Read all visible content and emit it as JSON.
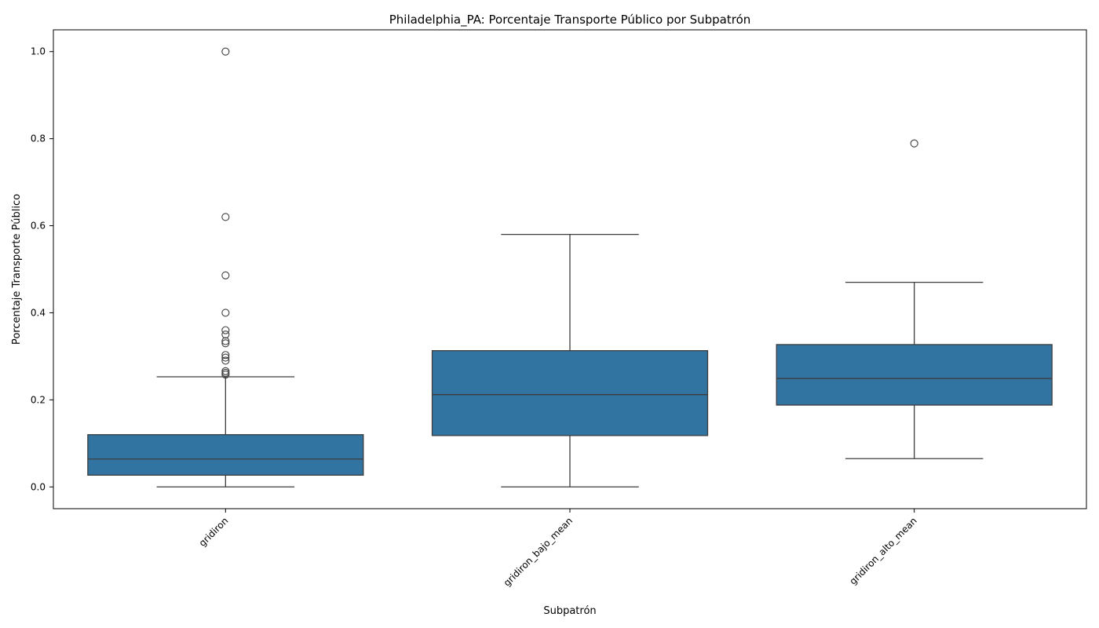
{
  "chart_data": {
    "type": "box",
    "title": "Philadelphia_PA: Porcentaje Transporte Público por Subpatrón",
    "xlabel": "Subpatrón",
    "ylabel": "Porcentaje Transporte Público",
    "ylim": [
      -0.05,
      1.05
    ],
    "yticks": [
      0.0,
      0.2,
      0.4,
      0.6,
      0.8,
      1.0
    ],
    "ytick_labels": [
      "0.0",
      "0.2",
      "0.4",
      "0.6",
      "0.8",
      "1.0"
    ],
    "grid": false,
    "box_color": "#3274a1",
    "line_color": "#3d3d3d",
    "categories": [
      "gridiron",
      "gridiron_bajo_mean",
      "gridiron_alto_mean"
    ],
    "boxes": [
      {
        "category": "gridiron",
        "whisker_low": 0.0,
        "q1": 0.027,
        "median": 0.064,
        "q3": 0.12,
        "whisker_high": 0.253,
        "outliers": [
          0.258,
          0.262,
          0.266,
          0.29,
          0.297,
          0.303,
          0.33,
          0.335,
          0.35,
          0.36,
          0.4,
          0.486,
          0.62,
          1.0
        ]
      },
      {
        "category": "gridiron_bajo_mean",
        "whisker_low": 0.0,
        "q1": 0.118,
        "median": 0.212,
        "q3": 0.313,
        "whisker_high": 0.58,
        "outliers": []
      },
      {
        "category": "gridiron_alto_mean",
        "whisker_low": 0.065,
        "q1": 0.188,
        "median": 0.249,
        "q3": 0.327,
        "whisker_high": 0.47,
        "outliers": [
          0.789
        ]
      }
    ]
  }
}
